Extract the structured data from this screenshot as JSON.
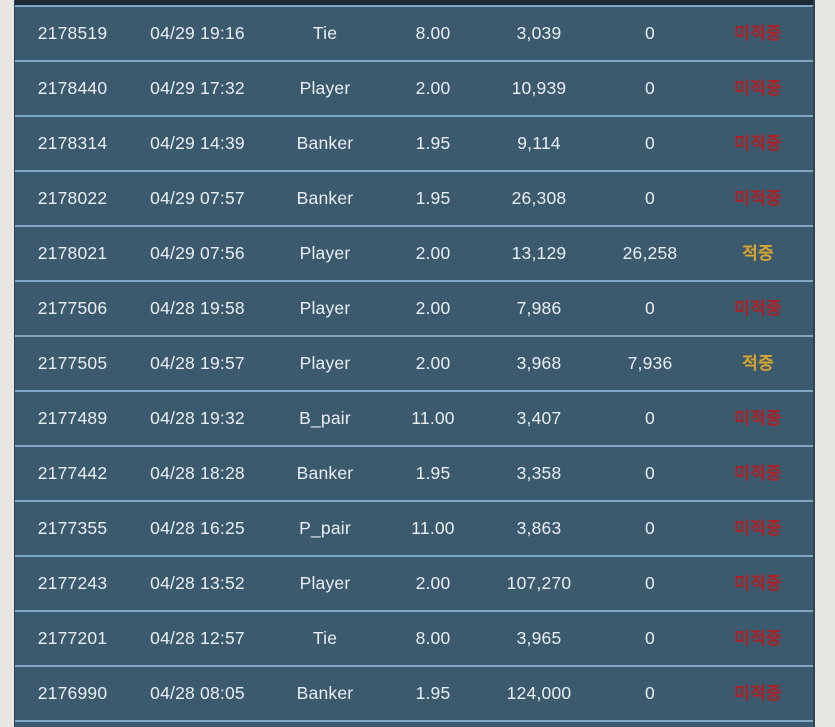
{
  "colors": {
    "row_background": "#3c5a6d",
    "row_divider": "#7da7c4",
    "header_bar": "#1e2b36",
    "page_gutter": "#e8e6e3",
    "text": "#e9eef2",
    "result_miss": "#ae2025",
    "result_hit": "#d9a530"
  },
  "table": {
    "result_labels": {
      "hit": "적중",
      "miss": "미적중"
    },
    "columns": [
      "bet-id",
      "datetime",
      "pick",
      "odds",
      "bet-amount",
      "win-amount",
      "result"
    ],
    "rows": [
      {
        "id": "2178519",
        "datetime": "04/29 19:16",
        "pick": "Tie",
        "odds": "8.00",
        "bet": "3,039",
        "win": "0",
        "result": "미적중",
        "hit": false
      },
      {
        "id": "2178440",
        "datetime": "04/29 17:32",
        "pick": "Player",
        "odds": "2.00",
        "bet": "10,939",
        "win": "0",
        "result": "미적중",
        "hit": false
      },
      {
        "id": "2178314",
        "datetime": "04/29 14:39",
        "pick": "Banker",
        "odds": "1.95",
        "bet": "9,114",
        "win": "0",
        "result": "미적중",
        "hit": false
      },
      {
        "id": "2178022",
        "datetime": "04/29 07:57",
        "pick": "Banker",
        "odds": "1.95",
        "bet": "26,308",
        "win": "0",
        "result": "미적중",
        "hit": false
      },
      {
        "id": "2178021",
        "datetime": "04/29 07:56",
        "pick": "Player",
        "odds": "2.00",
        "bet": "13,129",
        "win": "26,258",
        "result": "적중",
        "hit": true
      },
      {
        "id": "2177506",
        "datetime": "04/28 19:58",
        "pick": "Player",
        "odds": "2.00",
        "bet": "7,986",
        "win": "0",
        "result": "미적중",
        "hit": false
      },
      {
        "id": "2177505",
        "datetime": "04/28 19:57",
        "pick": "Player",
        "odds": "2.00",
        "bet": "3,968",
        "win": "7,936",
        "result": "적중",
        "hit": true
      },
      {
        "id": "2177489",
        "datetime": "04/28 19:32",
        "pick": "B_pair",
        "odds": "11.00",
        "bet": "3,407",
        "win": "0",
        "result": "미적중",
        "hit": false
      },
      {
        "id": "2177442",
        "datetime": "04/28 18:28",
        "pick": "Banker",
        "odds": "1.95",
        "bet": "3,358",
        "win": "0",
        "result": "미적중",
        "hit": false
      },
      {
        "id": "2177355",
        "datetime": "04/28 16:25",
        "pick": "P_pair",
        "odds": "11.00",
        "bet": "3,863",
        "win": "0",
        "result": "미적중",
        "hit": false
      },
      {
        "id": "2177243",
        "datetime": "04/28 13:52",
        "pick": "Player",
        "odds": "2.00",
        "bet": "107,270",
        "win": "0",
        "result": "미적중",
        "hit": false
      },
      {
        "id": "2177201",
        "datetime": "04/28 12:57",
        "pick": "Tie",
        "odds": "8.00",
        "bet": "3,965",
        "win": "0",
        "result": "미적중",
        "hit": false
      },
      {
        "id": "2176990",
        "datetime": "04/28 08:05",
        "pick": "Banker",
        "odds": "1.95",
        "bet": "124,000",
        "win": "0",
        "result": "미적중",
        "hit": false
      }
    ]
  }
}
